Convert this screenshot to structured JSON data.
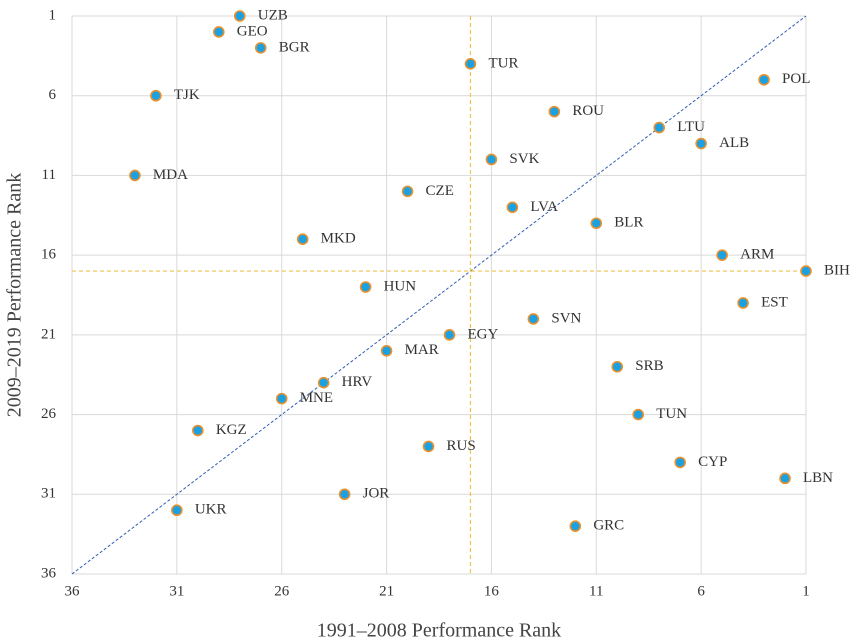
{
  "chart_data": {
    "type": "scatter",
    "x_label": "1991–2008 Performance Rank",
    "y_label": "2009–2019 Performance Rank",
    "labels": [
      "UZB",
      "GEO",
      "BGR",
      "TUR",
      "POL",
      "TJK",
      "ROU",
      "LTU",
      "ALB",
      "SVK",
      "MDA",
      "CZE",
      "LVA",
      "BLR",
      "MKD",
      "ARM",
      "BIH",
      "HUN",
      "EST",
      "SVN",
      "EGY",
      "MAR",
      "SRB",
      "HRV",
      "MNE",
      "TUN",
      "KGZ",
      "RUS",
      "CYP",
      "LBN",
      "JOR",
      "UKR",
      "GRC"
    ],
    "x": [
      28,
      29,
      27,
      17,
      3,
      32,
      13,
      8,
      6,
      16,
      33,
      20,
      15,
      11,
      25,
      5,
      1,
      22,
      4,
      14,
      18,
      21,
      10,
      24,
      26,
      9,
      30,
      19,
      7,
      2,
      23,
      31,
      12
    ],
    "values": [
      1,
      2,
      3,
      4,
      5,
      6,
      7,
      8,
      9,
      10,
      11,
      12,
      13,
      14,
      15,
      16,
      17,
      18,
      19,
      20,
      21,
      22,
      23,
      24,
      25,
      26,
      27,
      28,
      29,
      30,
      31,
      32,
      33
    ],
    "color": "#1ba1e2",
    "edge_color": "#e8912e",
    "xlim": [
      36,
      1
    ],
    "ylim": [
      36,
      1
    ],
    "xticks": [
      36,
      31,
      26,
      21,
      16,
      11,
      6,
      1
    ],
    "yticks": [
      36,
      31,
      26,
      21,
      16,
      11,
      6,
      1
    ],
    "grid": true,
    "reference_lines": {
      "x": 17,
      "y": 17,
      "color": "#f2c14e"
    },
    "diagonal": true,
    "diagonal_color": "#2f5fb3"
  }
}
